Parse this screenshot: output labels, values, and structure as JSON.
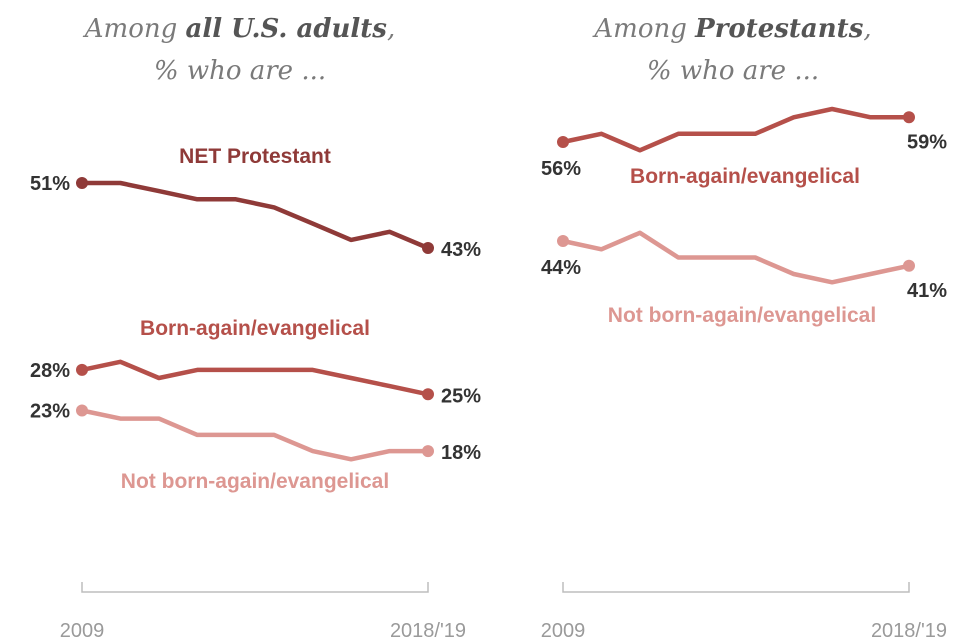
{
  "colors": {
    "net_protestant": "#8f3a38",
    "born_again": "#b5504a",
    "not_born_again": "#dd9792",
    "label_text": "#333333",
    "axis": "#bdbdbd",
    "tick_text": "#9a9a9a"
  },
  "chart_data": [
    {
      "type": "line",
      "subtitle_prefix": "Among ",
      "subtitle_strong": "all U.S. adults",
      "subtitle_suffix": ",",
      "subtitle_line2": "% who are ...",
      "x_tick_labels": [
        "2009",
        "2018/'19"
      ],
      "ylim": [
        10,
        60
      ],
      "series": [
        {
          "key": "net_protestant",
          "name": "NET Protestant",
          "values": [
            51,
            51,
            50,
            49,
            49,
            48,
            46,
            44,
            45,
            43
          ],
          "start_label": "51%",
          "end_label": "43%"
        },
        {
          "key": "born_again",
          "name": "Born-again/evangelical",
          "values": [
            28,
            29,
            27,
            28,
            28,
            28,
            28,
            27,
            26,
            25
          ],
          "start_label": "28%",
          "end_label": "25%"
        },
        {
          "key": "not_born_again",
          "name": "Not born-again/evangelical",
          "values": [
            23,
            22,
            22,
            20,
            20,
            20,
            18,
            17,
            18,
            18
          ],
          "start_label": "23%",
          "end_label": "18%"
        }
      ]
    },
    {
      "type": "line",
      "subtitle_prefix": "Among ",
      "subtitle_strong": "Protestants",
      "subtitle_suffix": ",",
      "subtitle_line2": "% who are ...",
      "x_tick_labels": [
        "2009",
        "2018/'19"
      ],
      "ylim": [
        10,
        70
      ],
      "series": [
        {
          "key": "born_again",
          "name": "Born-again/evangelical",
          "values": [
            56,
            57,
            55,
            57,
            57,
            57,
            59,
            60,
            59,
            59
          ],
          "start_label": "56%",
          "end_label": "59%"
        },
        {
          "key": "not_born_again",
          "name": "Not born-again/evangelical",
          "values": [
            44,
            43,
            45,
            42,
            42,
            42,
            40,
            39,
            40,
            41
          ],
          "start_label": "44%",
          "end_label": "41%"
        }
      ]
    }
  ]
}
